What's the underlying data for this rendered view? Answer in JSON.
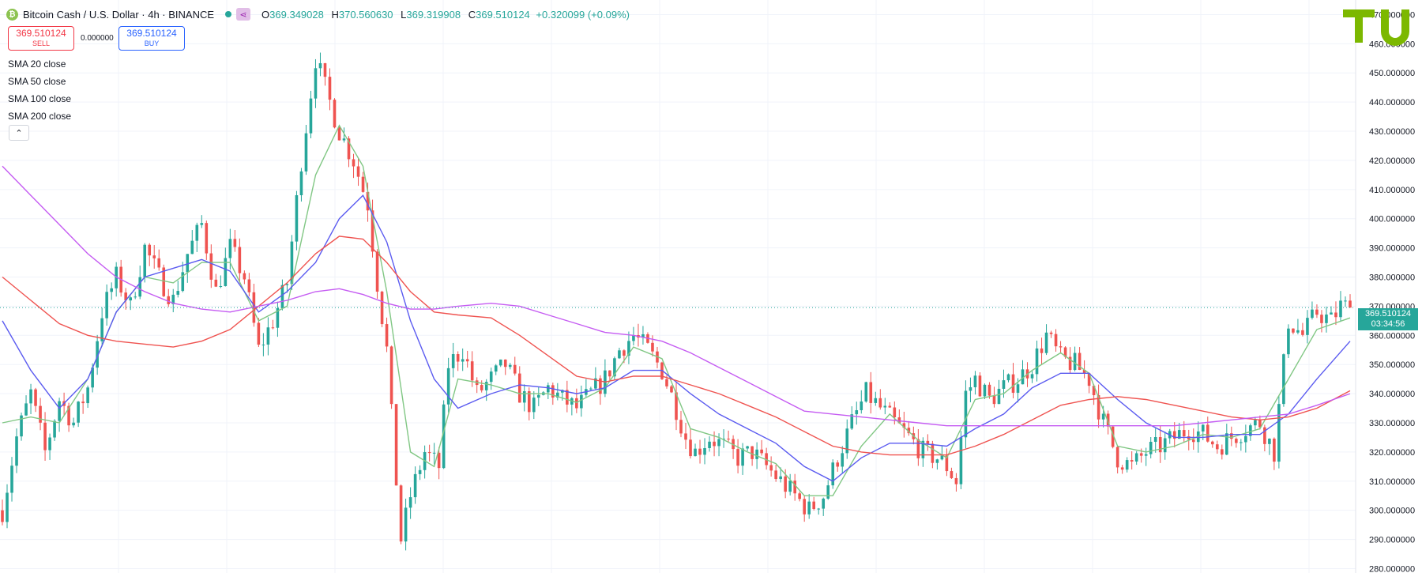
{
  "header": {
    "symbol_title": "Bitcoin Cash / U.S. Dollar · 4h · BINANCE",
    "coin_icon": "bitcoin-cash-icon",
    "open_label": "O",
    "open": "369.349028",
    "high_label": "H",
    "high": "370.560630",
    "low_label": "L",
    "low": "369.319908",
    "close_label": "C",
    "close": "369.510124",
    "change": "+0.320099 (+0.09%)"
  },
  "trade": {
    "sell_price": "369.510124",
    "sell_label": "SELL",
    "spread": "0.000000",
    "buy_price": "369.510124",
    "buy_label": "BUY"
  },
  "indicators": [
    {
      "label": "SMA 20 close",
      "color": "#81c784"
    },
    {
      "label": "SMA 50 close",
      "color": "#5b5bf0"
    },
    {
      "label": "SMA 100 close",
      "color": "#ef5350"
    },
    {
      "label": "SMA 200 close",
      "color": "#c55cf2"
    }
  ],
  "collapse_icon": "chevron-up-icon",
  "last_price": {
    "value": "369.510124",
    "countdown": "03:34:56"
  },
  "colors": {
    "up": "#26a69a",
    "down": "#ef5350",
    "logo": "#7cb800"
  },
  "chart_data": {
    "type": "candlestick",
    "symbol": "BCHUSD",
    "exchange": "BINANCE",
    "timeframe": "4h",
    "yaxis_ticks": [
      "280.000000",
      "290.000000",
      "300.000000",
      "310.000000",
      "320.000000",
      "330.000000",
      "340.000000",
      "350.000000",
      "360.000000",
      "370.000000",
      "380.000000",
      "390.000000",
      "400.000000",
      "410.000000",
      "420.000000",
      "430.000000",
      "440.000000",
      "450.000000",
      "460.000000",
      "470.000000"
    ],
    "ylim": [
      278.5,
      475
    ],
    "grid": true,
    "current_price": 369.510124,
    "close_path": [
      [
        0,
        300
      ],
      [
        3,
        325
      ],
      [
        6,
        340
      ],
      [
        9,
        320
      ],
      [
        12,
        338
      ],
      [
        15,
        330
      ],
      [
        18,
        342
      ],
      [
        21,
        368
      ],
      [
        24,
        380
      ],
      [
        27,
        370
      ],
      [
        30,
        390
      ],
      [
        33,
        380
      ],
      [
        36,
        372
      ],
      [
        39,
        388
      ],
      [
        42,
        398
      ],
      [
        45,
        375
      ],
      [
        48,
        390
      ],
      [
        51,
        380
      ],
      [
        54,
        355
      ],
      [
        57,
        365
      ],
      [
        60,
        378
      ],
      [
        63,
        420
      ],
      [
        66,
        455
      ],
      [
        68,
        445
      ],
      [
        71,
        430
      ],
      [
        74,
        420
      ],
      [
        77,
        405
      ],
      [
        79,
        378
      ],
      [
        81,
        355
      ],
      [
        83,
        310
      ],
      [
        84,
        290
      ],
      [
        86,
        305
      ],
      [
        89,
        320
      ],
      [
        92,
        315
      ],
      [
        94,
        350
      ],
      [
        97,
        355
      ],
      [
        100,
        340
      ],
      [
        103,
        345
      ],
      [
        106,
        350
      ],
      [
        109,
        340
      ],
      [
        112,
        335
      ],
      [
        115,
        342
      ],
      [
        118,
        338
      ],
      [
        121,
        335
      ],
      [
        124,
        340
      ],
      [
        127,
        345
      ],
      [
        130,
        355
      ],
      [
        133,
        360
      ],
      [
        136,
        355
      ],
      [
        139,
        348
      ],
      [
        142,
        335
      ],
      [
        144,
        325
      ],
      [
        146,
        320
      ],
      [
        149,
        325
      ],
      [
        152,
        322
      ],
      [
        155,
        318
      ],
      [
        158,
        320
      ],
      [
        161,
        315
      ],
      [
        164,
        310
      ],
      [
        167,
        305
      ],
      [
        170,
        300
      ],
      [
        173,
        305
      ],
      [
        176,
        318
      ],
      [
        179,
        330
      ],
      [
        182,
        340
      ],
      [
        185,
        335
      ],
      [
        188,
        330
      ],
      [
        191,
        325
      ],
      [
        194,
        320
      ],
      [
        197,
        318
      ],
      [
        199,
        315
      ],
      [
        201,
        310
      ],
      [
        203,
        340
      ],
      [
        205,
        345
      ],
      [
        208,
        338
      ],
      [
        211,
        342
      ],
      [
        214,
        345
      ],
      [
        217,
        350
      ],
      [
        220,
        360
      ],
      [
        223,
        352
      ],
      [
        226,
        350
      ],
      [
        229,
        345
      ],
      [
        232,
        330
      ],
      [
        235,
        318
      ],
      [
        238,
        315
      ],
      [
        241,
        320
      ],
      [
        244,
        322
      ],
      [
        247,
        325
      ],
      [
        250,
        328
      ],
      [
        253,
        326
      ],
      [
        256,
        322
      ],
      [
        259,
        325
      ],
      [
        262,
        328
      ],
      [
        265,
        330
      ],
      [
        268,
        320
      ],
      [
        271,
        365
      ],
      [
        274,
        360
      ],
      [
        277,
        368
      ],
      [
        280,
        365
      ],
      [
        282,
        370
      ],
      [
        284,
        369.51
      ]
    ],
    "sma": [
      {
        "name": "SMA 20 close",
        "values": [
          [
            0,
            330
          ],
          [
            6,
            332
          ],
          [
            12,
            330
          ],
          [
            18,
            345
          ],
          [
            24,
            368
          ],
          [
            30,
            380
          ],
          [
            36,
            378
          ],
          [
            42,
            385
          ],
          [
            48,
            385
          ],
          [
            54,
            365
          ],
          [
            60,
            370
          ],
          [
            66,
            415
          ],
          [
            71,
            432
          ],
          [
            76,
            418
          ],
          [
            81,
            375
          ],
          [
            86,
            320
          ],
          [
            91,
            315
          ],
          [
            96,
            345
          ],
          [
            103,
            343
          ],
          [
            109,
            340
          ],
          [
            115,
            340
          ],
          [
            121,
            337
          ],
          [
            127,
            342
          ],
          [
            133,
            356
          ],
          [
            139,
            352
          ],
          [
            145,
            328
          ],
          [
            151,
            325
          ],
          [
            157,
            320
          ],
          [
            163,
            316
          ],
          [
            169,
            305
          ],
          [
            175,
            305
          ],
          [
            181,
            322
          ],
          [
            187,
            333
          ],
          [
            193,
            324
          ],
          [
            199,
            318
          ],
          [
            205,
            338
          ],
          [
            211,
            340
          ],
          [
            217,
            348
          ],
          [
            223,
            354
          ],
          [
            229,
            347
          ],
          [
            235,
            322
          ],
          [
            241,
            320
          ],
          [
            247,
            322
          ],
          [
            253,
            326
          ],
          [
            259,
            325
          ],
          [
            265,
            328
          ],
          [
            271,
            345
          ],
          [
            277,
            362
          ],
          [
            284,
            366
          ]
        ]
      },
      {
        "name": "SMA 50 close",
        "values": [
          [
            0,
            365
          ],
          [
            6,
            348
          ],
          [
            12,
            335
          ],
          [
            18,
            345
          ],
          [
            24,
            368
          ],
          [
            30,
            380
          ],
          [
            36,
            383
          ],
          [
            42,
            386
          ],
          [
            48,
            382
          ],
          [
            54,
            368
          ],
          [
            60,
            375
          ],
          [
            66,
            385
          ],
          [
            71,
            400
          ],
          [
            76,
            408
          ],
          [
            81,
            392
          ],
          [
            86,
            365
          ],
          [
            91,
            345
          ],
          [
            96,
            335
          ],
          [
            103,
            340
          ],
          [
            109,
            343
          ],
          [
            115,
            342
          ],
          [
            121,
            340
          ],
          [
            127,
            342
          ],
          [
            133,
            348
          ],
          [
            139,
            348
          ],
          [
            145,
            340
          ],
          [
            151,
            333
          ],
          [
            157,
            328
          ],
          [
            163,
            323
          ],
          [
            169,
            315
          ],
          [
            175,
            310
          ],
          [
            181,
            318
          ],
          [
            187,
            323
          ],
          [
            193,
            323
          ],
          [
            199,
            322
          ],
          [
            205,
            328
          ],
          [
            211,
            333
          ],
          [
            217,
            342
          ],
          [
            223,
            347
          ],
          [
            229,
            347
          ],
          [
            235,
            338
          ],
          [
            241,
            330
          ],
          [
            247,
            325
          ],
          [
            253,
            325
          ],
          [
            259,
            326
          ],
          [
            265,
            326
          ],
          [
            271,
            333
          ],
          [
            277,
            345
          ],
          [
            284,
            358
          ]
        ]
      },
      {
        "name": "SMA 100 close",
        "values": [
          [
            0,
            380
          ],
          [
            6,
            372
          ],
          [
            12,
            364
          ],
          [
            18,
            360
          ],
          [
            24,
            358
          ],
          [
            30,
            357
          ],
          [
            36,
            356
          ],
          [
            42,
            358
          ],
          [
            48,
            362
          ],
          [
            54,
            370
          ],
          [
            60,
            378
          ],
          [
            66,
            388
          ],
          [
            71,
            394
          ],
          [
            76,
            393
          ],
          [
            81,
            385
          ],
          [
            86,
            375
          ],
          [
            91,
            368
          ],
          [
            96,
            367
          ],
          [
            103,
            366
          ],
          [
            109,
            360
          ],
          [
            115,
            353
          ],
          [
            121,
            346
          ],
          [
            127,
            344
          ],
          [
            133,
            346
          ],
          [
            139,
            346
          ],
          [
            145,
            343
          ],
          [
            151,
            340
          ],
          [
            157,
            336
          ],
          [
            163,
            332
          ],
          [
            169,
            327
          ],
          [
            175,
            322
          ],
          [
            181,
            320
          ],
          [
            187,
            319
          ],
          [
            193,
            319
          ],
          [
            199,
            319
          ],
          [
            205,
            322
          ],
          [
            211,
            326
          ],
          [
            217,
            331
          ],
          [
            223,
            336
          ],
          [
            229,
            338
          ],
          [
            235,
            339
          ],
          [
            241,
            338
          ],
          [
            247,
            336
          ],
          [
            253,
            334
          ],
          [
            259,
            332
          ],
          [
            265,
            331
          ],
          [
            271,
            332
          ],
          [
            277,
            335
          ],
          [
            284,
            341
          ]
        ]
      },
      {
        "name": "SMA 200 close",
        "values": [
          [
            0,
            418
          ],
          [
            6,
            408
          ],
          [
            12,
            398
          ],
          [
            18,
            388
          ],
          [
            24,
            380
          ],
          [
            30,
            375
          ],
          [
            36,
            371
          ],
          [
            42,
            369
          ],
          [
            48,
            368
          ],
          [
            54,
            370
          ],
          [
            60,
            372
          ],
          [
            66,
            375
          ],
          [
            71,
            376
          ],
          [
            76,
            374
          ],
          [
            81,
            371
          ],
          [
            86,
            369
          ],
          [
            91,
            369
          ],
          [
            96,
            370
          ],
          [
            103,
            371
          ],
          [
            109,
            370
          ],
          [
            115,
            367
          ],
          [
            121,
            364
          ],
          [
            127,
            361
          ],
          [
            133,
            360
          ],
          [
            139,
            358
          ],
          [
            145,
            354
          ],
          [
            151,
            349
          ],
          [
            157,
            344
          ],
          [
            163,
            339
          ],
          [
            169,
            334
          ],
          [
            175,
            333
          ],
          [
            181,
            332
          ],
          [
            187,
            331
          ],
          [
            193,
            330
          ],
          [
            199,
            329
          ],
          [
            205,
            329
          ],
          [
            211,
            329
          ],
          [
            217,
            329
          ],
          [
            223,
            329
          ],
          [
            229,
            329
          ],
          [
            235,
            329
          ],
          [
            241,
            329
          ],
          [
            247,
            329
          ],
          [
            253,
            330
          ],
          [
            259,
            331
          ],
          [
            265,
            332
          ],
          [
            271,
            333
          ],
          [
            277,
            336
          ],
          [
            284,
            340
          ]
        ]
      }
    ]
  }
}
